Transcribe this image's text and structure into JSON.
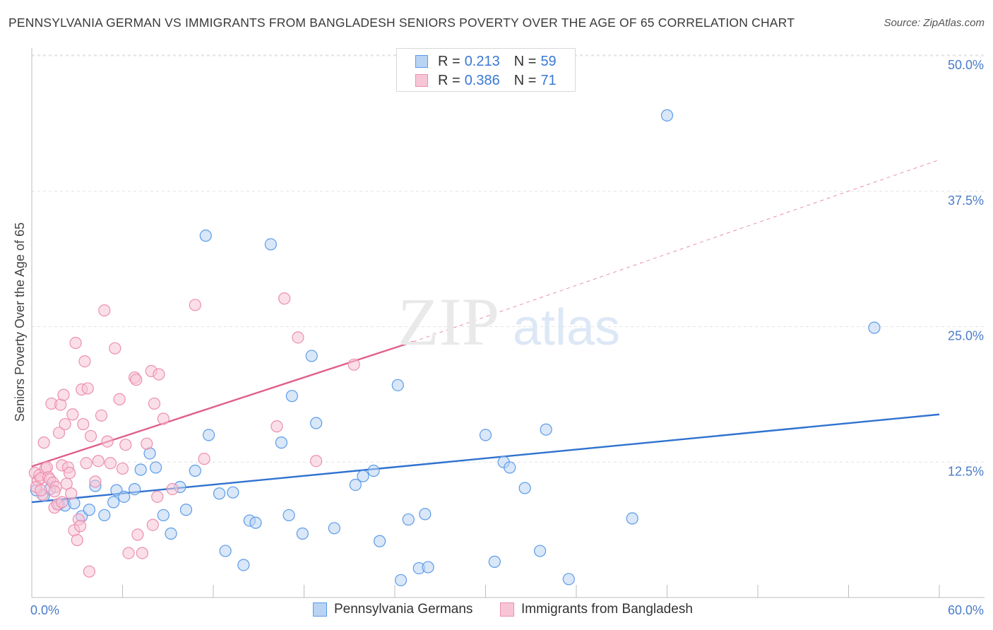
{
  "title": "PENNSYLVANIA GERMAN VS IMMIGRANTS FROM BANGLADESH SENIORS POVERTY OVER THE AGE OF 65 CORRELATION CHART",
  "source": "Source: ZipAtlas.com",
  "colors": {
    "blue": "#5b9be8",
    "blue_fill": "#b9d3f3",
    "blue_line": "#2f72cf",
    "pink": "#ec8fb0",
    "pink_fill": "#f7c5d6",
    "pink_line": "#e0608c",
    "tick_text": "#4a7cc9",
    "grid": "#e2e2e2"
  },
  "legend": {
    "rows": [
      {
        "r_label": "R =",
        "r_value": "0.213",
        "n_label": "N =",
        "n_value": "59"
      },
      {
        "r_label": "R =",
        "r_value": "0.386",
        "n_label": "N =",
        "n_value": "71"
      }
    ]
  },
  "bottom_legend": [
    "Pennsylvania Germans",
    "Immigrants from Bangladesh"
  ],
  "chart_data": {
    "type": "scatter",
    "title": "PENNSYLVANIA GERMAN VS IMMIGRANTS FROM BANGLADESH SENIORS POVERTY OVER THE AGE OF 65 CORRELATION CHART",
    "xlabel": "",
    "ylabel": "Seniors Poverty Over the Age of 65",
    "xlim": [
      0,
      60
    ],
    "ylim": [
      0,
      50
    ],
    "x_tick_labels": [
      "0.0%",
      "60.0%"
    ],
    "y_tick_values": [
      12.5,
      25.0,
      37.5,
      50.0
    ],
    "y_tick_labels": [
      "12.5%",
      "25.0%",
      "37.5%",
      "50.0%"
    ],
    "grid": true,
    "legend_position": "top-center",
    "series": [
      {
        "name": "Pennsylvania Germans",
        "color": "#5b9be8",
        "trend": {
          "x": [
            0,
            60
          ],
          "y": [
            8.8,
            16.9
          ],
          "dashed_extension": false
        },
        "points": [
          [
            0.3,
            9.9
          ],
          [
            0.8,
            9.4
          ],
          [
            1.2,
            10.0
          ],
          [
            1.8,
            8.6
          ],
          [
            2.2,
            8.5
          ],
          [
            2.8,
            8.7
          ],
          [
            3.3,
            7.5
          ],
          [
            3.8,
            8.1
          ],
          [
            4.2,
            10.3
          ],
          [
            4.8,
            7.6
          ],
          [
            5.4,
            8.8
          ],
          [
            5.6,
            9.9
          ],
          [
            6.1,
            9.3
          ],
          [
            6.8,
            10.0
          ],
          [
            7.2,
            11.8
          ],
          [
            7.8,
            13.3
          ],
          [
            8.2,
            12.0
          ],
          [
            8.7,
            7.6
          ],
          [
            9.2,
            5.9
          ],
          [
            9.8,
            10.2
          ],
          [
            10.2,
            8.1
          ],
          [
            10.8,
            11.7
          ],
          [
            11.5,
            33.4
          ],
          [
            11.7,
            15.0
          ],
          [
            12.4,
            9.6
          ],
          [
            12.8,
            4.3
          ],
          [
            13.3,
            9.7
          ],
          [
            14.0,
            3.0
          ],
          [
            14.4,
            7.1
          ],
          [
            14.8,
            6.9
          ],
          [
            15.8,
            32.6
          ],
          [
            16.5,
            14.3
          ],
          [
            17.0,
            7.6
          ],
          [
            17.2,
            18.6
          ],
          [
            17.9,
            5.9
          ],
          [
            18.5,
            22.3
          ],
          [
            18.8,
            16.1
          ],
          [
            20.0,
            6.4
          ],
          [
            21.4,
            10.4
          ],
          [
            21.9,
            11.2
          ],
          [
            22.6,
            11.7
          ],
          [
            23.0,
            5.2
          ],
          [
            24.2,
            19.6
          ],
          [
            24.4,
            1.6
          ],
          [
            24.9,
            7.2
          ],
          [
            25.6,
            2.7
          ],
          [
            26.0,
            7.7
          ],
          [
            26.2,
            2.8
          ],
          [
            30.0,
            15.0
          ],
          [
            30.6,
            3.3
          ],
          [
            31.2,
            12.5
          ],
          [
            31.6,
            12.0
          ],
          [
            32.6,
            10.1
          ],
          [
            33.6,
            4.3
          ],
          [
            34.0,
            15.5
          ],
          [
            35.5,
            1.7
          ],
          [
            39.7,
            7.3
          ],
          [
            42.0,
            44.5
          ],
          [
            55.7,
            24.9
          ]
        ]
      },
      {
        "name": "Immigrants from Bangladesh",
        "color": "#ec8fb0",
        "trend": {
          "x": [
            0,
            25.2
          ],
          "y": [
            12.1,
            23.6
          ],
          "dashed_extension": true,
          "dashed_to": {
            "x": 60,
            "y": 40.4
          }
        },
        "points": [
          [
            0.2,
            11.5
          ],
          [
            0.4,
            10.8
          ],
          [
            0.5,
            11.3
          ],
          [
            0.6,
            11.0
          ],
          [
            0.7,
            9.5
          ],
          [
            0.8,
            14.3
          ],
          [
            0.9,
            11.9
          ],
          [
            1.0,
            12.0
          ],
          [
            1.1,
            11.1
          ],
          [
            1.2,
            10.9
          ],
          [
            1.3,
            17.9
          ],
          [
            1.4,
            10.6
          ],
          [
            1.5,
            8.3
          ],
          [
            1.6,
            10.2
          ],
          [
            1.7,
            8.6
          ],
          [
            1.8,
            15.2
          ],
          [
            1.9,
            17.8
          ],
          [
            2.0,
            12.2
          ],
          [
            2.1,
            18.7
          ],
          [
            2.2,
            16.0
          ],
          [
            2.3,
            10.5
          ],
          [
            2.4,
            12.0
          ],
          [
            2.5,
            11.5
          ],
          [
            2.6,
            9.6
          ],
          [
            2.7,
            16.9
          ],
          [
            2.8,
            6.2
          ],
          [
            2.9,
            23.5
          ],
          [
            3.0,
            5.3
          ],
          [
            3.1,
            7.2
          ],
          [
            3.2,
            6.6
          ],
          [
            3.3,
            19.2
          ],
          [
            3.4,
            16.0
          ],
          [
            3.5,
            21.8
          ],
          [
            3.6,
            12.4
          ],
          [
            3.7,
            19.3
          ],
          [
            3.8,
            2.4
          ],
          [
            3.9,
            14.9
          ],
          [
            4.2,
            10.7
          ],
          [
            4.4,
            12.6
          ],
          [
            4.6,
            16.8
          ],
          [
            4.8,
            26.5
          ],
          [
            5.0,
            14.4
          ],
          [
            5.2,
            12.4
          ],
          [
            5.5,
            23.0
          ],
          [
            5.8,
            18.3
          ],
          [
            6.0,
            11.9
          ],
          [
            6.2,
            14.1
          ],
          [
            6.4,
            4.1
          ],
          [
            6.8,
            20.3
          ],
          [
            6.9,
            20.1
          ],
          [
            7.0,
            5.8
          ],
          [
            7.3,
            4.1
          ],
          [
            7.6,
            14.2
          ],
          [
            7.9,
            20.9
          ],
          [
            8.0,
            6.7
          ],
          [
            8.1,
            17.9
          ],
          [
            8.3,
            9.3
          ],
          [
            8.4,
            20.6
          ],
          [
            8.7,
            16.5
          ],
          [
            9.3,
            10.0
          ],
          [
            10.8,
            27.0
          ],
          [
            11.4,
            12.8
          ],
          [
            16.2,
            15.8
          ],
          [
            16.7,
            27.6
          ],
          [
            17.6,
            24.0
          ],
          [
            18.8,
            12.6
          ],
          [
            21.3,
            21.5
          ],
          [
            0.3,
            10.2
          ],
          [
            0.6,
            9.9
          ],
          [
            1.5,
            9.8
          ],
          [
            2.0,
            8.8
          ]
        ]
      }
    ]
  }
}
